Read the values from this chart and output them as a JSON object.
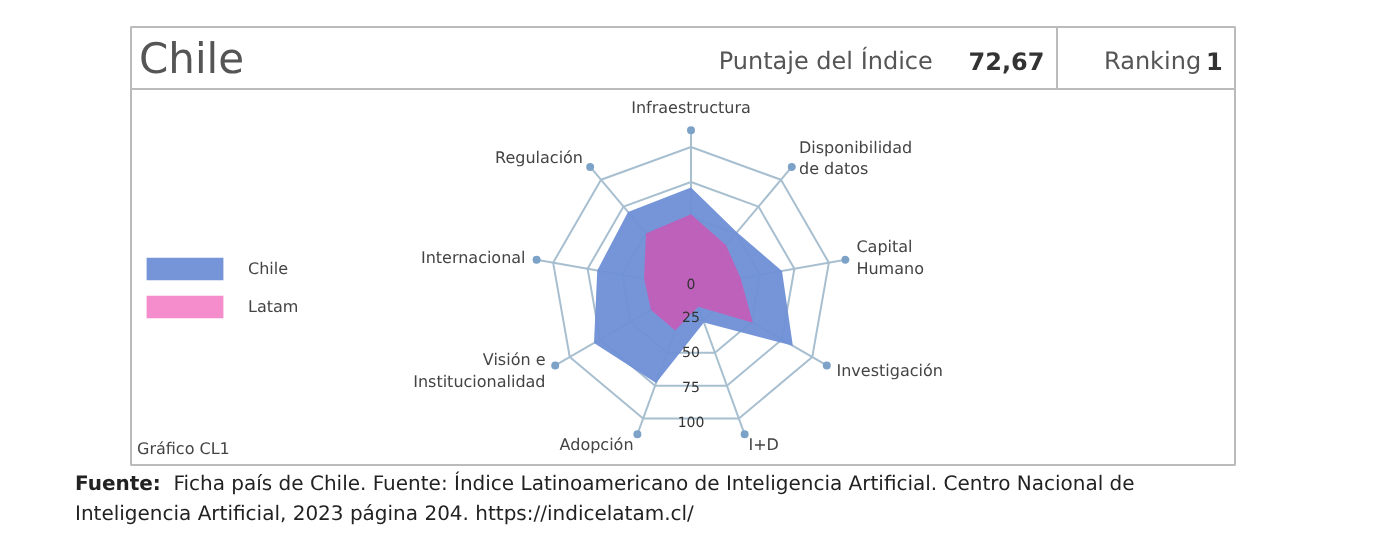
{
  "chart_data": {
    "type": "radar",
    "title": "Chile",
    "categories": [
      "Infraestructura",
      "Disponibilidad de datos",
      "Capital Humano",
      "Investigación",
      "I+D",
      "Adopción",
      "Visión e Institucionalidad",
      "Internacional",
      "Regulación"
    ],
    "series": [
      {
        "name": "Chile",
        "color": "#6f8fd6",
        "values": [
          71,
          51,
          66,
          84,
          27,
          73,
          80,
          68,
          70
        ]
      },
      {
        "name": "Latam",
        "color": "#ee3fa8",
        "values": [
          52,
          39,
          36,
          51,
          15,
          33,
          33,
          34,
          50
        ]
      }
    ],
    "ylim": [
      0,
      100
    ],
    "yticks": [
      0,
      25,
      50,
      75,
      100
    ],
    "grid": true,
    "legend": "left",
    "annotations": [
      "Puntaje del Índice 72,67",
      "Ranking 1",
      "Gráfico CL1",
      "Fuente: Ficha país de Chile. Fuente: Índice Latinoamericano de Inteligencia Artificial. Centro Nacional de Inteligencia Artificial, 2023 página 204. https://indicelatam.cl/"
    ]
  }
}
